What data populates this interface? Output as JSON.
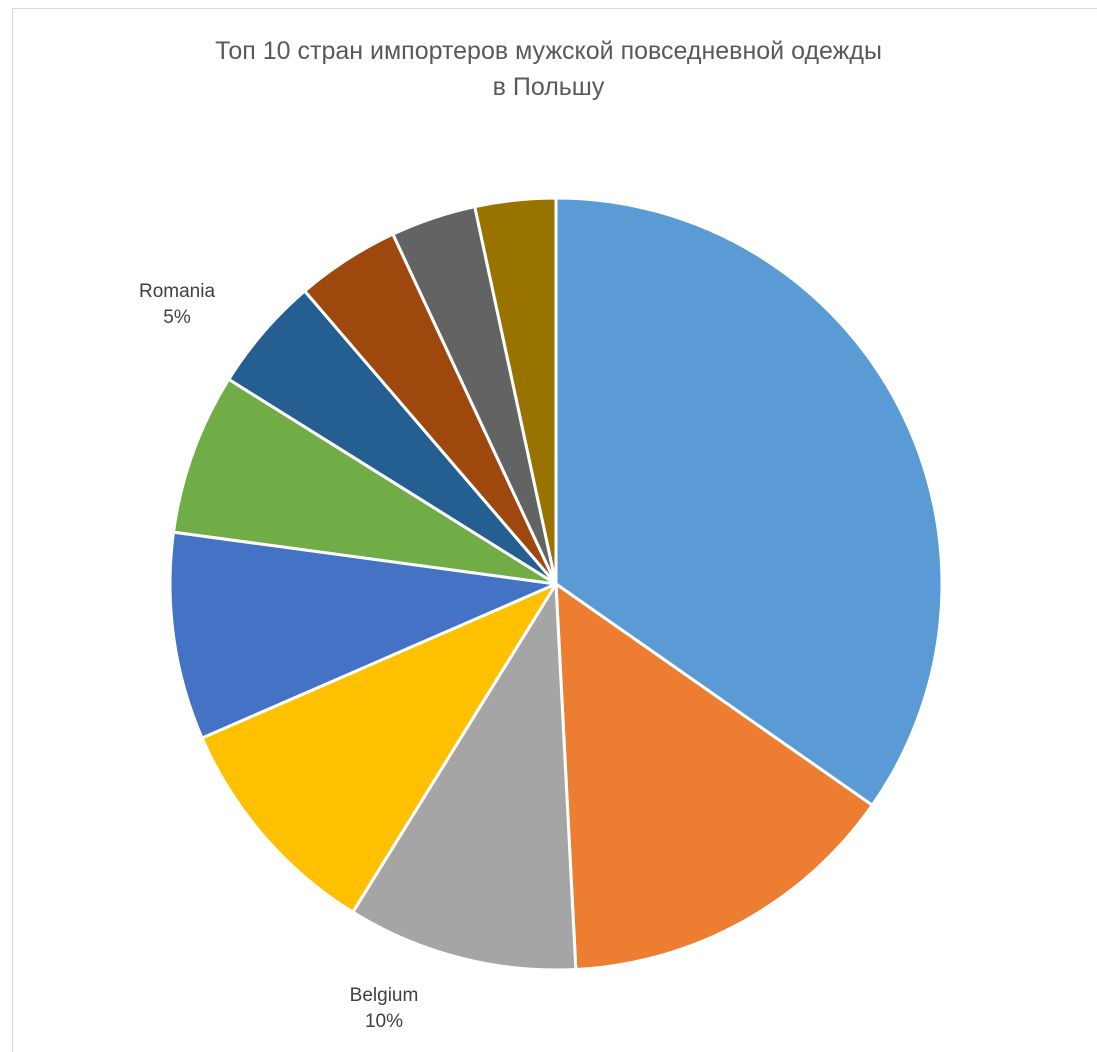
{
  "chart_data": {
    "type": "pie",
    "title_line1": "Топ 10 стран импортеров мужской повседневной одежды",
    "title_line2": "в Польшу",
    "slices": [
      {
        "value": 36,
        "color": "#5B9BD5"
      },
      {
        "value": 15,
        "color": "#ED7D31"
      },
      {
        "value": 10,
        "color": "#A5A5A5",
        "label": "Belgium",
        "pct": "10%"
      },
      {
        "value": 10,
        "color": "#FFC000"
      },
      {
        "value": 9,
        "color": "#4472C4"
      },
      {
        "value": 7,
        "color": "#70AD47"
      },
      {
        "value": 5,
        "color": "#255E91",
        "label": "Romania",
        "pct": "5%"
      },
      {
        "value": 4.5,
        "color": "#9E480E"
      },
      {
        "value": 3.7,
        "color": "#636363"
      },
      {
        "value": 3.5,
        "color": "#997300"
      }
    ]
  }
}
